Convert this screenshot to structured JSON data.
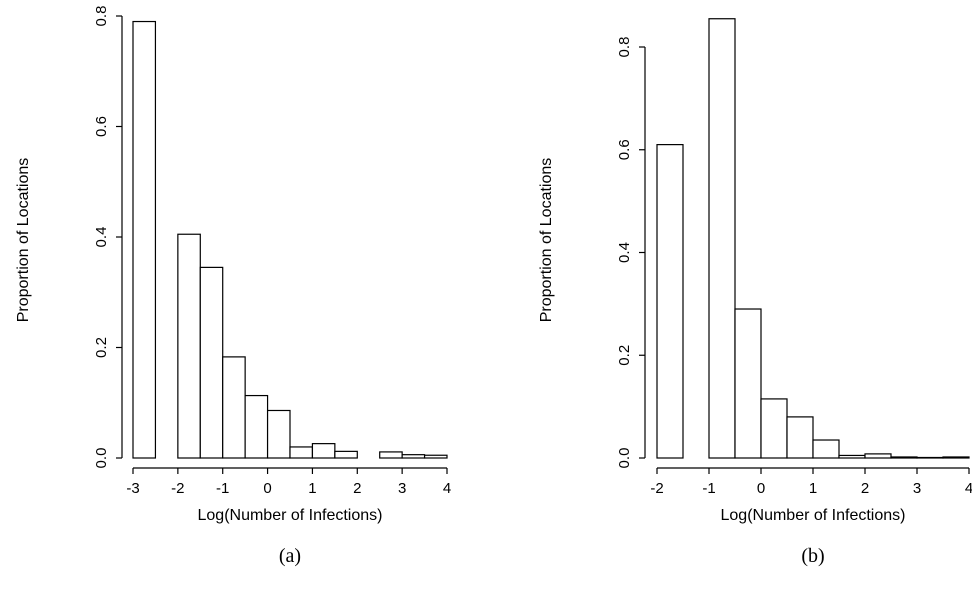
{
  "chart_data": [
    {
      "type": "bar",
      "caption": "(a)",
      "xlabel": "Log(Number of Infections)",
      "ylabel": "Proportion of Locations",
      "bin_width": 0.5,
      "bin_starts": [
        -3,
        -2.5,
        -2,
        -1.5,
        -1,
        -0.5,
        0,
        0.5,
        1,
        1.5,
        2,
        2.5,
        3,
        3.5
      ],
      "values": [
        0.79,
        0,
        0.405,
        0.345,
        0.183,
        0.113,
        0.086,
        0.02,
        0.026,
        0.012,
        0,
        0.011,
        0.006,
        0.005
      ],
      "xlim": [
        -3,
        4
      ],
      "ylim": [
        0,
        0.8
      ],
      "xticks": [
        "-3",
        "-2",
        "-1",
        "0",
        "1",
        "2",
        "3",
        "4"
      ],
      "yticks": [
        "0.0",
        "0.2",
        "0.4",
        "0.6",
        "0.8"
      ]
    },
    {
      "type": "bar",
      "caption": "(b)",
      "xlabel": "Log(Number of Infections)",
      "ylabel": "Proportion of Locations",
      "bin_width": 0.5,
      "bin_starts": [
        -2,
        -1.5,
        -1,
        -0.5,
        0,
        0.5,
        1,
        1.5,
        2,
        2.5,
        3,
        3.5
      ],
      "values": [
        0.61,
        0,
        0.855,
        0.29,
        0.115,
        0.08,
        0.035,
        0.005,
        0.008,
        0.002,
        0.001,
        0.002
      ],
      "xlim": [
        -2,
        4
      ],
      "ylim": [
        0,
        0.8
      ],
      "xticks": [
        "-2",
        "-1",
        "0",
        "1",
        "2",
        "3",
        "4"
      ],
      "yticks": [
        "0.0",
        "0.2",
        "0.4",
        "0.6",
        "0.8"
      ]
    }
  ]
}
